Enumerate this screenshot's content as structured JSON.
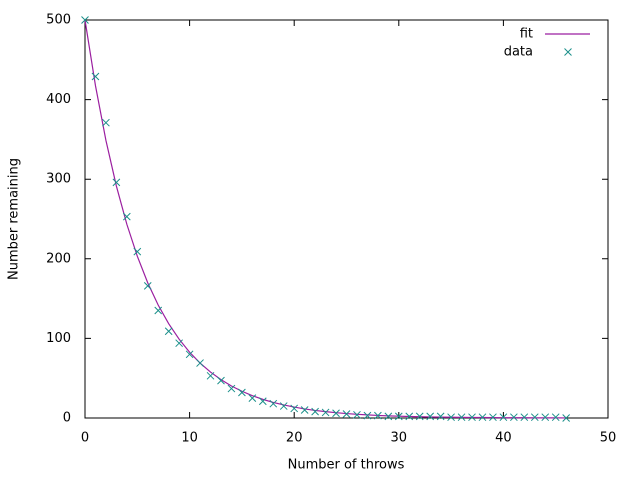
{
  "chart_data": {
    "type": "line",
    "xlabel": "Number of throws",
    "ylabel": "Number remaining",
    "x": [
      0,
      1,
      2,
      3,
      4,
      5,
      6,
      7,
      8,
      9,
      10,
      11,
      12,
      13,
      14,
      15,
      16,
      17,
      18,
      19,
      20,
      21,
      22,
      23,
      24,
      25,
      26,
      27,
      28,
      29,
      30,
      31,
      32,
      33,
      34,
      35,
      36,
      37,
      38,
      39,
      40,
      41,
      42,
      43,
      44,
      45,
      46
    ],
    "series": [
      {
        "name": "fit",
        "style": "line",
        "color": "#9b1fa0",
        "values": [
          500,
          417.6,
          348.8,
          291.4,
          243.4,
          203.3,
          169.8,
          141.8,
          118.5,
          99,
          82.6,
          69,
          57.7,
          48.2,
          40.2,
          33.6,
          28.1,
          23.4,
          19.6,
          16.4,
          13.7,
          11.4,
          9.5,
          8,
          6.7,
          5.6,
          4.6,
          3.9,
          3.2,
          2.7,
          2.3,
          1.9,
          1.6,
          1.3,
          1.1,
          0.9,
          0.8,
          0.7,
          0.6,
          0.5,
          0.4,
          0.3,
          0.3,
          0.2,
          0.2,
          0.2,
          0.1
        ]
      },
      {
        "name": "data",
        "style": "points",
        "color": "#1a8f8a",
        "values": [
          500,
          429,
          371,
          296,
          253,
          209,
          166,
          135,
          109,
          94,
          80,
          69,
          53,
          47,
          37,
          32,
          25,
          21,
          18,
          15,
          12,
          10,
          8,
          7,
          6,
          5,
          4,
          3,
          3,
          2,
          2,
          2,
          2,
          2,
          2,
          1,
          1,
          1,
          1,
          1,
          1,
          1,
          1,
          1,
          1,
          1,
          0
        ]
      }
    ],
    "xlim": [
      0,
      50
    ],
    "xticks": [
      0,
      10,
      20,
      30,
      40,
      50
    ],
    "ylim": [
      0,
      500
    ],
    "yticks": [
      0,
      100,
      200,
      300,
      400,
      500
    ],
    "grid": false,
    "legend": "top-right"
  }
}
